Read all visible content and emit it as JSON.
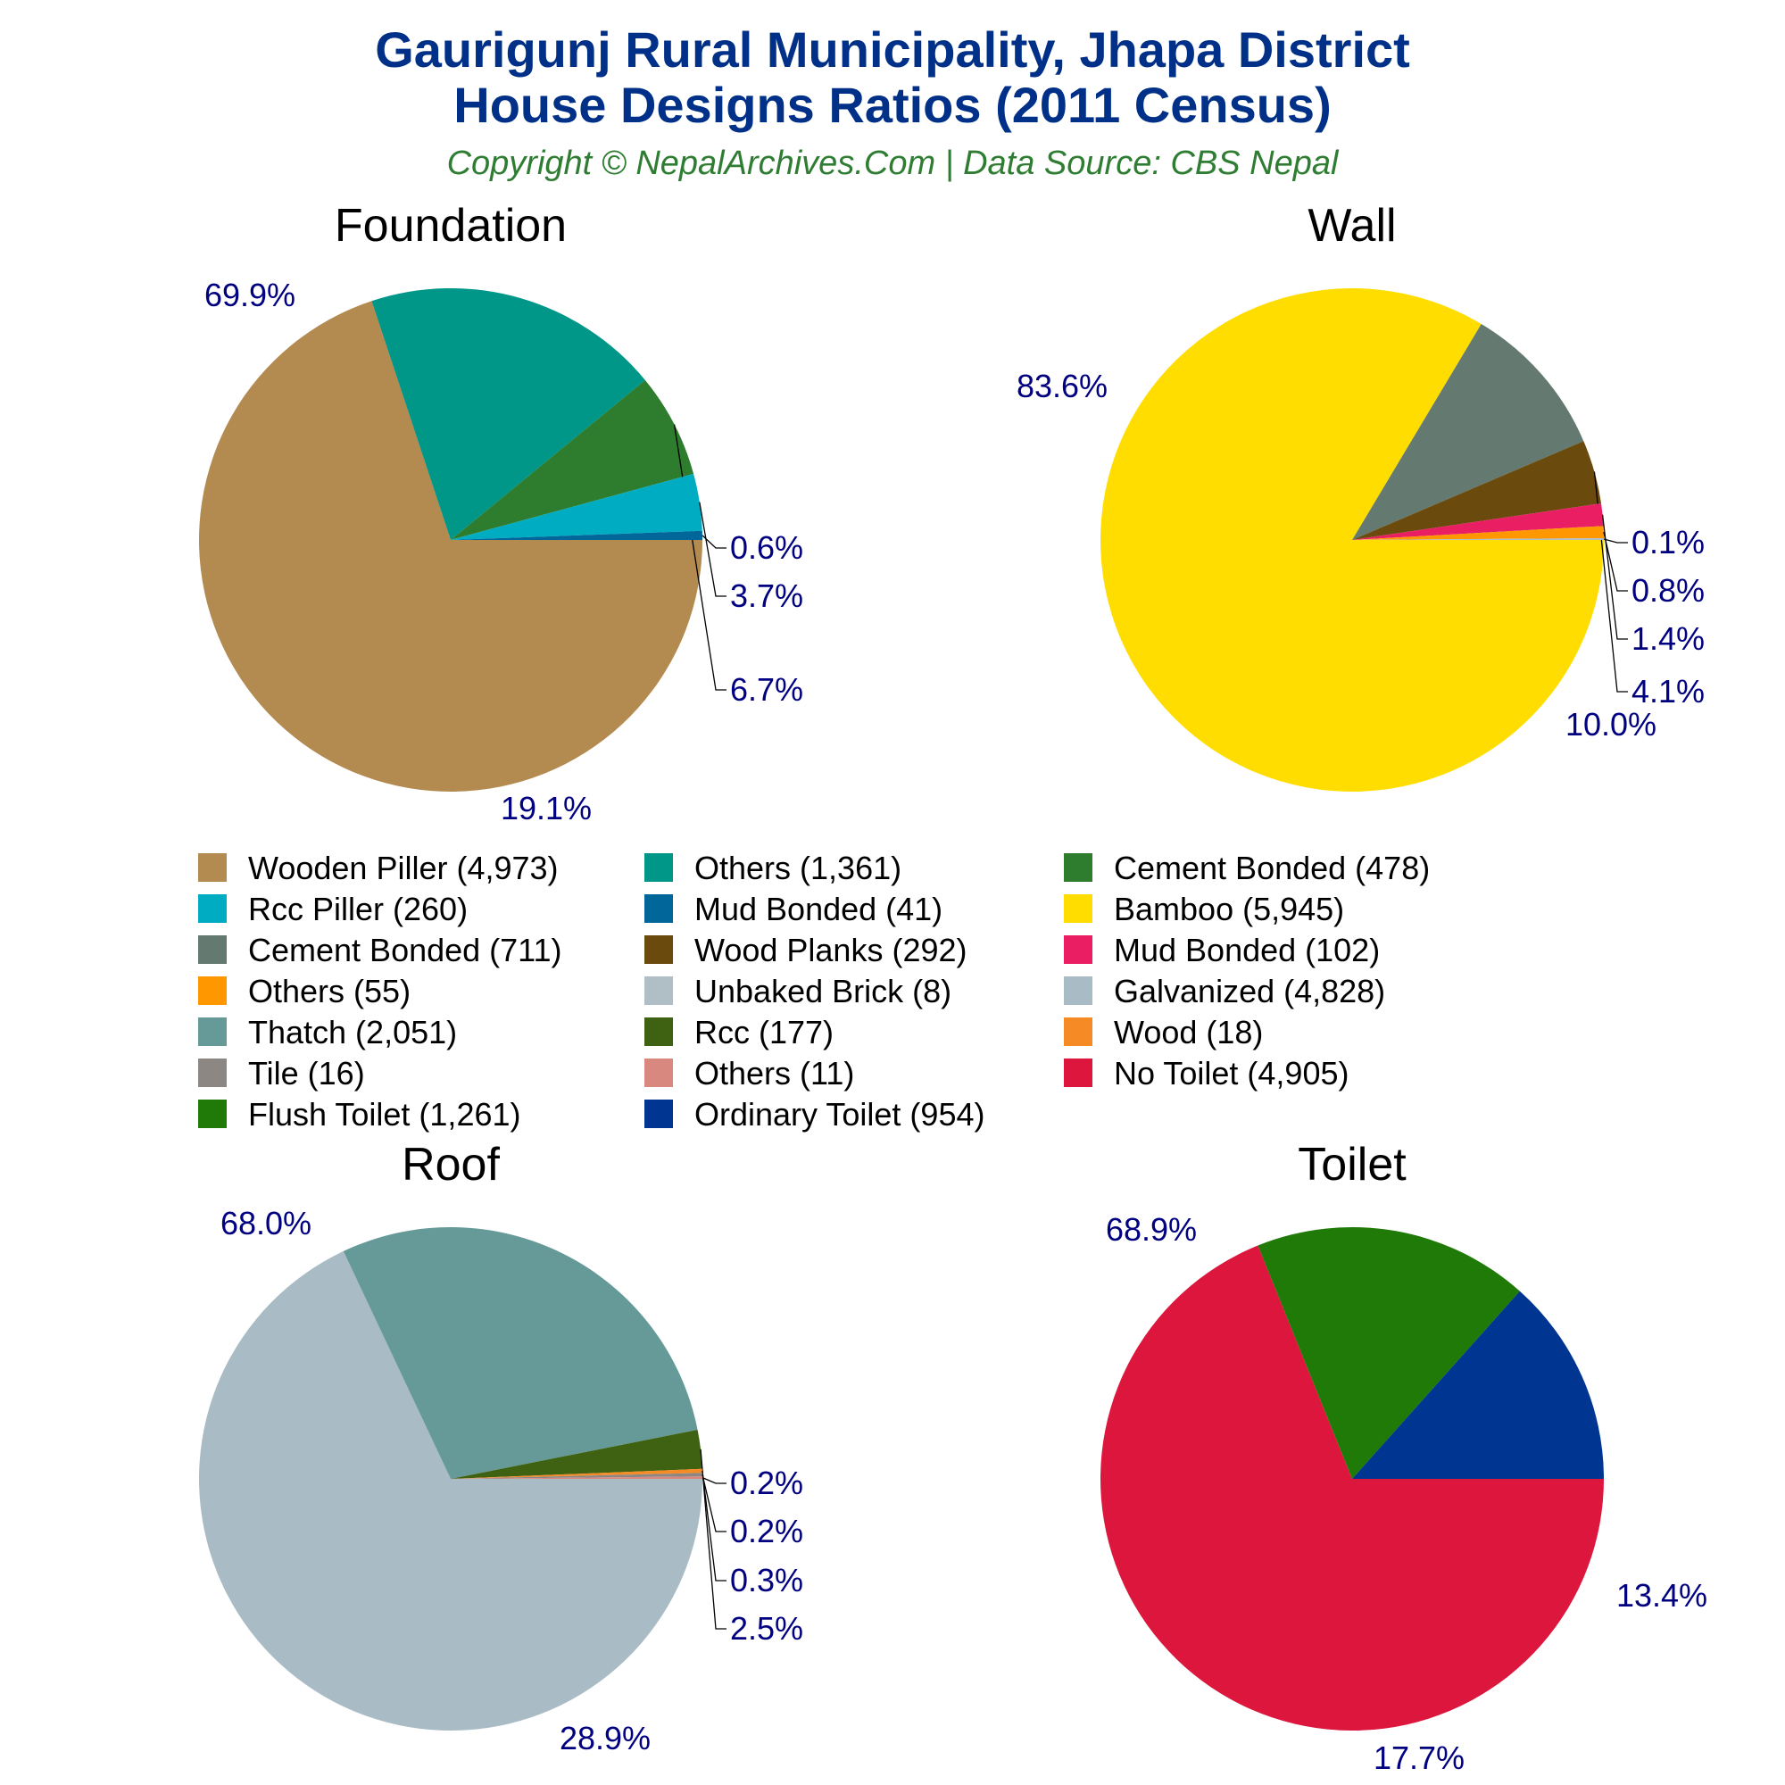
{
  "header": {
    "title_line1": "Gaurigunj Rural Municipality, Jhapa District",
    "title_line2": "House Designs Ratios (2011 Census)",
    "subtitle": "Copyright © NepalArchives.Com | Data Source: CBS Nepal"
  },
  "chart_data": [
    {
      "type": "pie",
      "title": "Foundation",
      "slices": [
        {
          "label": "Wooden Piller",
          "value": 4973,
          "pct": "69.9%",
          "color": "#b38b51"
        },
        {
          "label": "Others",
          "value": 1361,
          "pct": "19.1%",
          "color": "#009688"
        },
        {
          "label": "Cement Bonded",
          "value": 478,
          "pct": "6.7%",
          "color": "#2e7d2e"
        },
        {
          "label": "Rcc Piller",
          "value": 260,
          "pct": "3.7%",
          "color": "#00acc1"
        },
        {
          "label": "Mud Bonded",
          "value": 41,
          "pct": "0.6%",
          "color": "#016699"
        }
      ]
    },
    {
      "type": "pie",
      "title": "Wall",
      "slices": [
        {
          "label": "Bamboo",
          "value": 5945,
          "pct": "83.6%",
          "color": "#ffdd00"
        },
        {
          "label": "Cement Bonded",
          "value": 711,
          "pct": "10.0%",
          "color": "#647a70"
        },
        {
          "label": "Wood Planks",
          "value": 292,
          "pct": "4.1%",
          "color": "#6b4a0e"
        },
        {
          "label": "Mud Bonded",
          "value": 102,
          "pct": "1.4%",
          "color": "#e91e63"
        },
        {
          "label": "Others",
          "value": 55,
          "pct": "0.8%",
          "color": "#ff9800"
        },
        {
          "label": "Unbaked Brick",
          "value": 8,
          "pct": "0.1%",
          "color": "#b0bec5"
        }
      ]
    },
    {
      "type": "pie",
      "title": "Roof",
      "slices": [
        {
          "label": "Galvanized",
          "value": 4828,
          "pct": "68.0%",
          "color": "#a9bbc4"
        },
        {
          "label": "Thatch",
          "value": 2051,
          "pct": "28.9%",
          "color": "#659a98"
        },
        {
          "label": "Rcc",
          "value": 177,
          "pct": "2.5%",
          "color": "#3f6212"
        },
        {
          "label": "Wood",
          "value": 18,
          "pct": "0.3%",
          "color": "#f68b25"
        },
        {
          "label": "Tile",
          "value": 16,
          "pct": "0.2%",
          "color": "#8d8784"
        },
        {
          "label": "Others",
          "value": 11,
          "pct": "0.2%",
          "color": "#d98880"
        }
      ]
    },
    {
      "type": "pie",
      "title": "Toilet",
      "slices": [
        {
          "label": "No Toilet",
          "value": 4905,
          "pct": "68.9%",
          "color": "#dc163c"
        },
        {
          "label": "Flush Toilet",
          "value": 1261,
          "pct": "17.7%",
          "color": "#1f7a07"
        },
        {
          "label": "Ordinary Toilet",
          "value": 954,
          "pct": "13.4%",
          "color": "#003591"
        }
      ]
    }
  ],
  "legend": [
    {
      "text": "Wooden Piller (4,973)",
      "color": "#b38b51"
    },
    {
      "text": "Others (1,361)",
      "color": "#009688"
    },
    {
      "text": "Cement Bonded (478)",
      "color": "#2e7d2e"
    },
    {
      "text": "Rcc Piller (260)",
      "color": "#00acc1"
    },
    {
      "text": "Mud Bonded (41)",
      "color": "#016699"
    },
    {
      "text": "Bamboo (5,945)",
      "color": "#ffdd00"
    },
    {
      "text": "Cement Bonded (711)",
      "color": "#647a70"
    },
    {
      "text": "Wood Planks (292)",
      "color": "#6b4a0e"
    },
    {
      "text": "Mud Bonded (102)",
      "color": "#e91e63"
    },
    {
      "text": "Others (55)",
      "color": "#ff9800"
    },
    {
      "text": "Unbaked Brick (8)",
      "color": "#b0bec5"
    },
    {
      "text": "Galvanized (4,828)",
      "color": "#a9bbc4"
    },
    {
      "text": "Thatch (2,051)",
      "color": "#659a98"
    },
    {
      "text": "Rcc (177)",
      "color": "#3f6212"
    },
    {
      "text": "Wood (18)",
      "color": "#f68b25"
    },
    {
      "text": "Tile (16)",
      "color": "#8d8784"
    },
    {
      "text": "Others (11)",
      "color": "#d98880"
    },
    {
      "text": "No Toilet (4,905)",
      "color": "#dc163c"
    },
    {
      "text": "Flush Toilet (1,261)",
      "color": "#1f7a07"
    },
    {
      "text": "Ordinary Toilet (954)",
      "color": "#003591"
    }
  ]
}
